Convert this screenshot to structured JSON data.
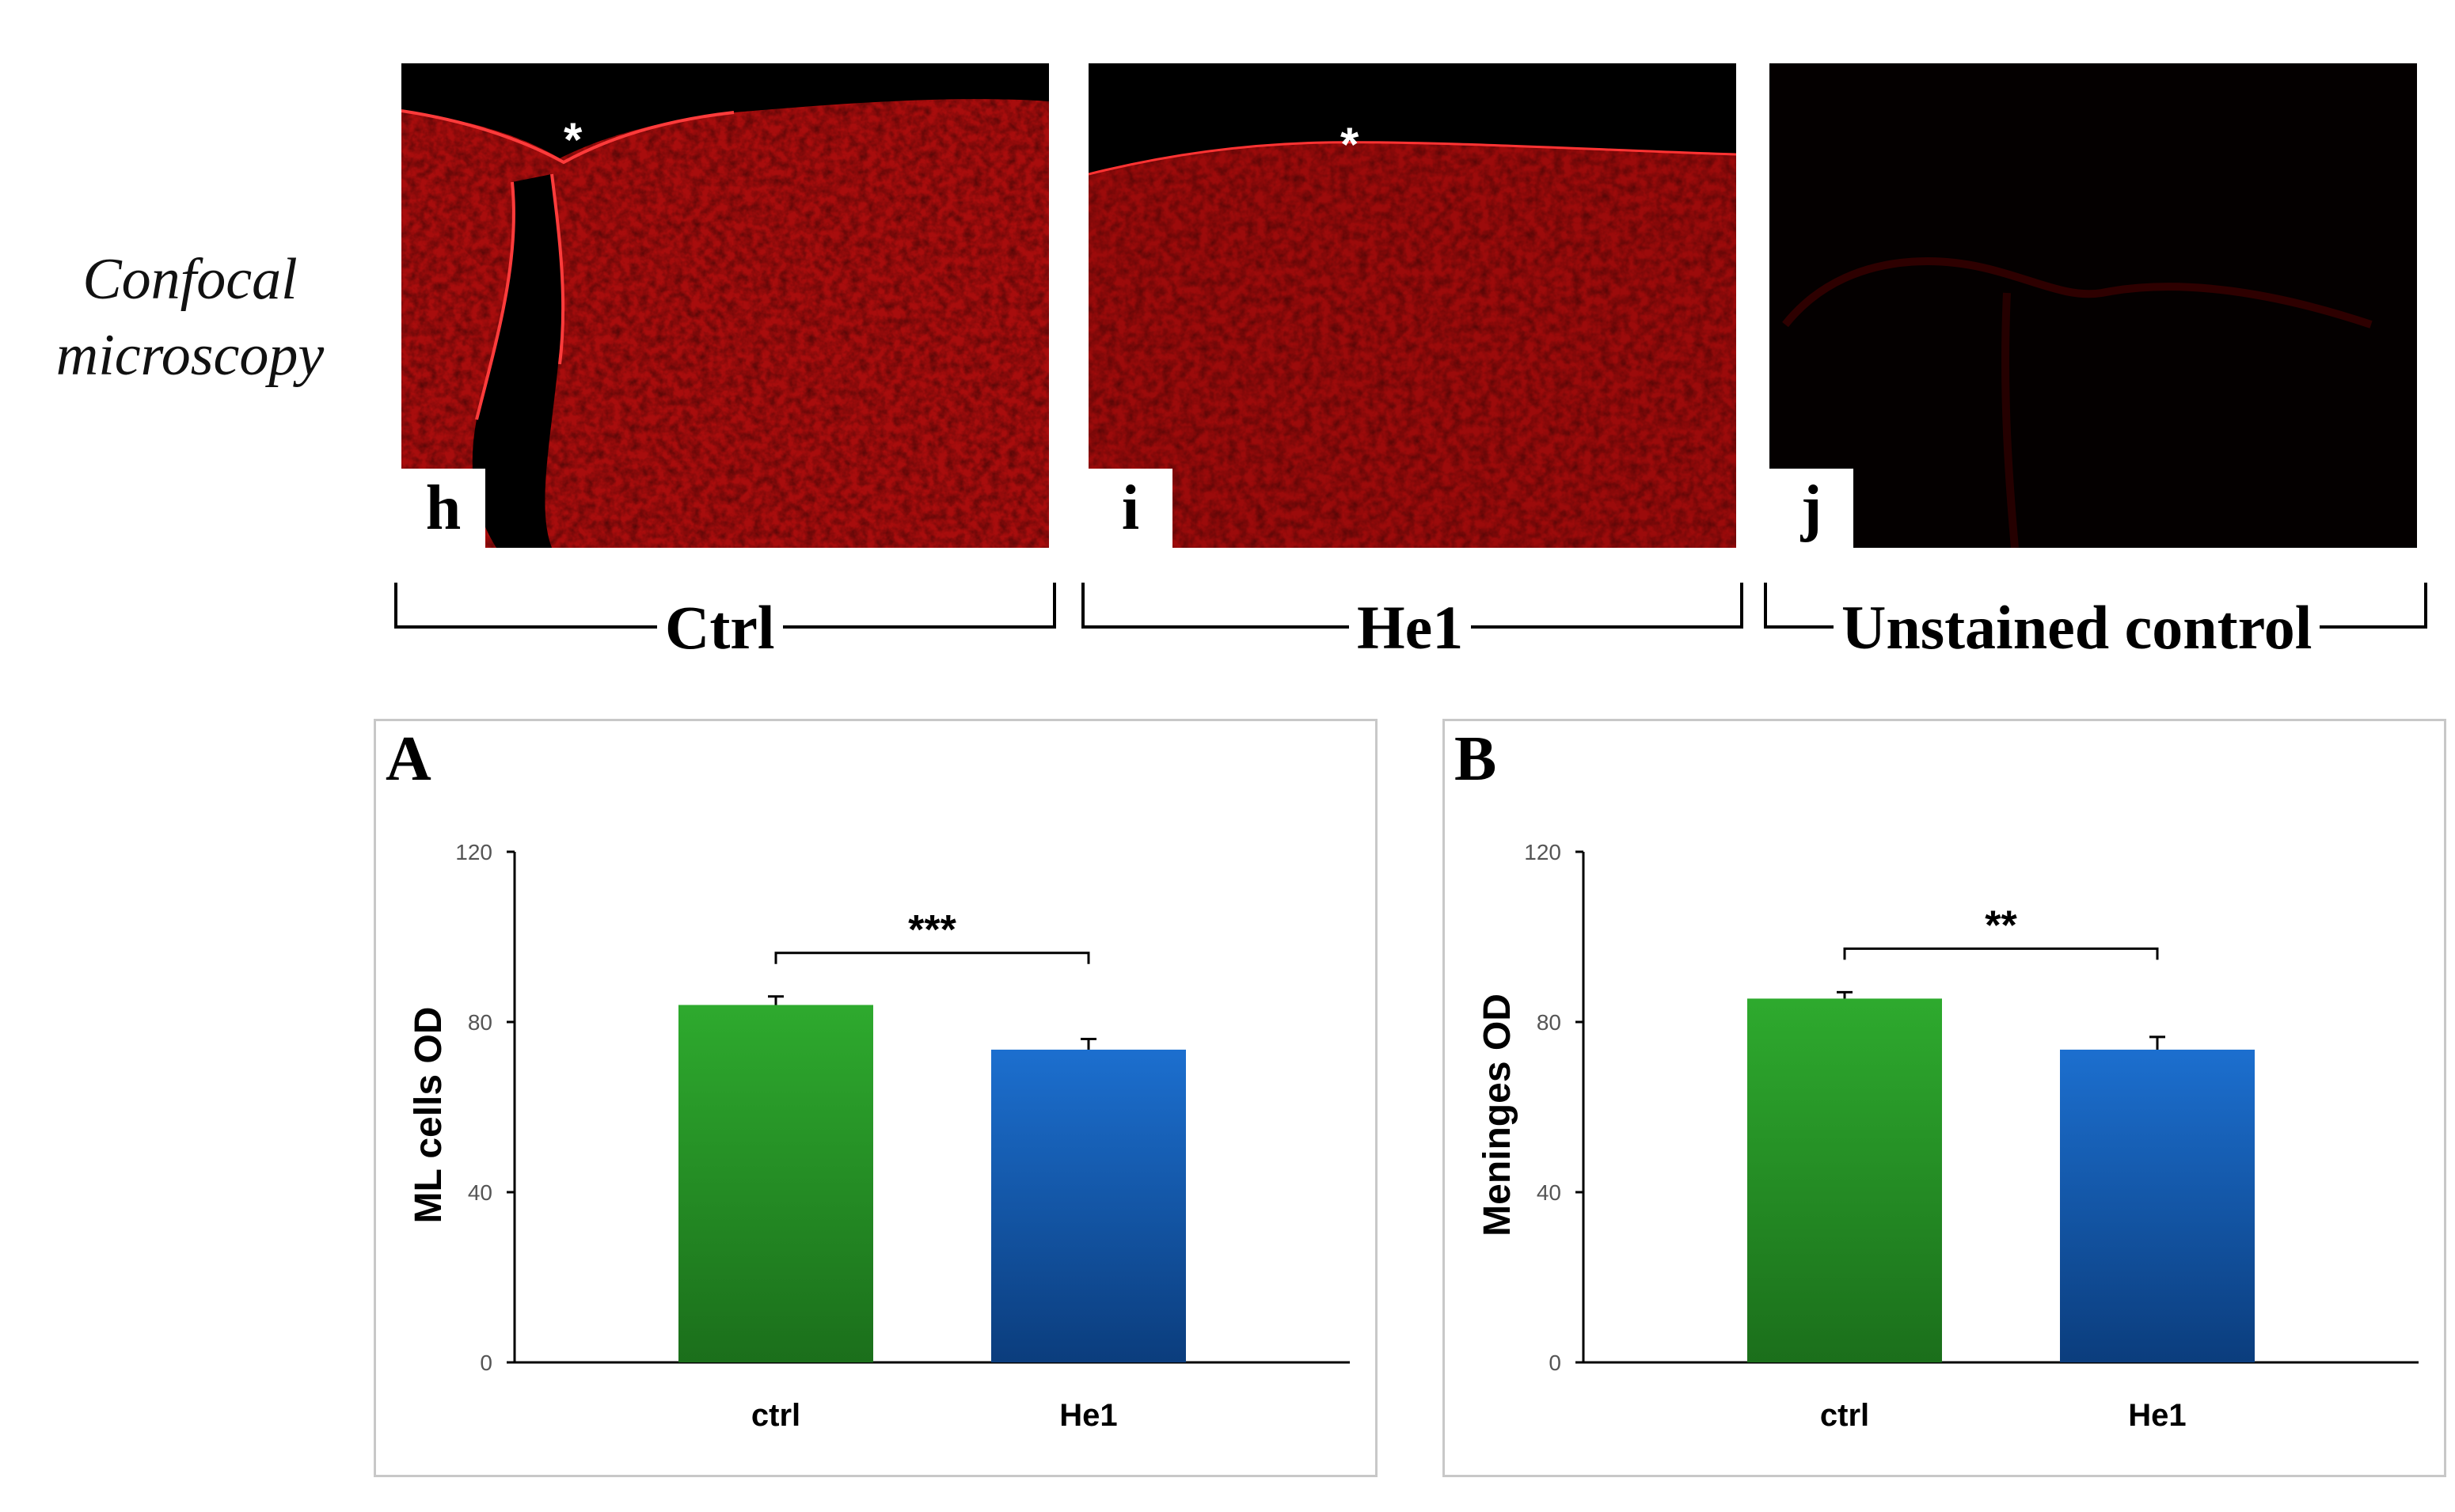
{
  "side_label": {
    "line1": "Confocal",
    "line2": "microscopy"
  },
  "panels": [
    {
      "letter": "h",
      "asterisk": "*"
    },
    {
      "letter": "i",
      "asterisk": "*"
    },
    {
      "letter": "j"
    }
  ],
  "groups": [
    {
      "label": "Ctrl"
    },
    {
      "label": "He1"
    },
    {
      "label": "Unstained control"
    }
  ],
  "colors": {
    "stain": "#b30000",
    "ctrl_bar": "#2eaa2e",
    "he1_bar": "#1c6fcf"
  },
  "chart_data": [
    {
      "panel": "A",
      "type": "bar",
      "categories": [
        "ctrl",
        "He1"
      ],
      "values": [
        84,
        73.5
      ],
      "errors": [
        2,
        2.5
      ],
      "ylabel": "ML cells OD",
      "ylim": [
        0,
        120
      ],
      "yticks": [
        "0",
        "40",
        "80",
        "120"
      ],
      "significance": "***"
    },
    {
      "panel": "B",
      "type": "bar",
      "categories": [
        "ctrl",
        "He1"
      ],
      "values": [
        85.5,
        73.5
      ],
      "errors": [
        1.5,
        3
      ],
      "ylabel": "Meninges OD",
      "ylim": [
        0,
        120
      ],
      "yticks": [
        "0",
        "40",
        "80",
        "120"
      ],
      "significance": "**"
    }
  ]
}
